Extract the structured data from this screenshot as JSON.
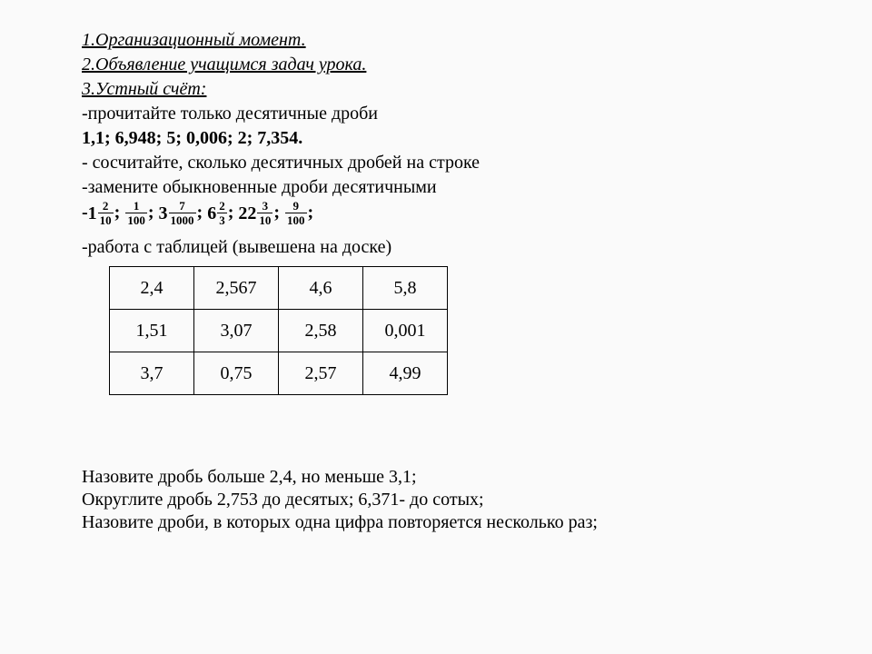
{
  "heading1": "1.Организационный момент.",
  "heading2": "2.Объявление учащимся задач урока.",
  "heading3": "3.Устный счёт:",
  "line_read": "-прочитайте только десятичные дроби",
  "decimals_line": "1,1;   6,948;  5;   0,006;  2;  7,354.",
  "line_count": " - сосчитайте, сколько десятичных дробей на строке",
  "line_replace": "-замените  обыкновенные дроби десятичными",
  "fractions": {
    "prefix": "-",
    "items": [
      {
        "int": "1",
        "num": "2",
        "den": "10"
      },
      {
        "int": "",
        "num": "1",
        "den": "100"
      },
      {
        "int": "3",
        "num": "7",
        "den": "1000"
      },
      {
        "int": "6",
        "num": "2",
        "den": "3"
      },
      {
        "int": "22",
        "num": "3",
        "den": "10"
      },
      {
        "int": "",
        "num": "9",
        "den": "100"
      }
    ],
    "sep": "; ",
    "tail": ";"
  },
  "line_table": "-работа с таблицей (вывешена на доске)",
  "table": {
    "rows": [
      [
        "2,4",
        "2,567",
        "4,6",
        "5,8"
      ],
      [
        "1,51",
        "3,07",
        "2,58",
        "0,001"
      ],
      [
        "3,7",
        "0,75",
        "2,57",
        "4,99"
      ]
    ]
  },
  "footer1": "Назовите дробь больше 2,4, но меньше 3,1;",
  "footer2": "Округлите дробь 2,753 до десятых; 6,371- до сотых;",
  "footer3": "Назовите дроби, в которых  одна цифра повторяется несколько раз;"
}
